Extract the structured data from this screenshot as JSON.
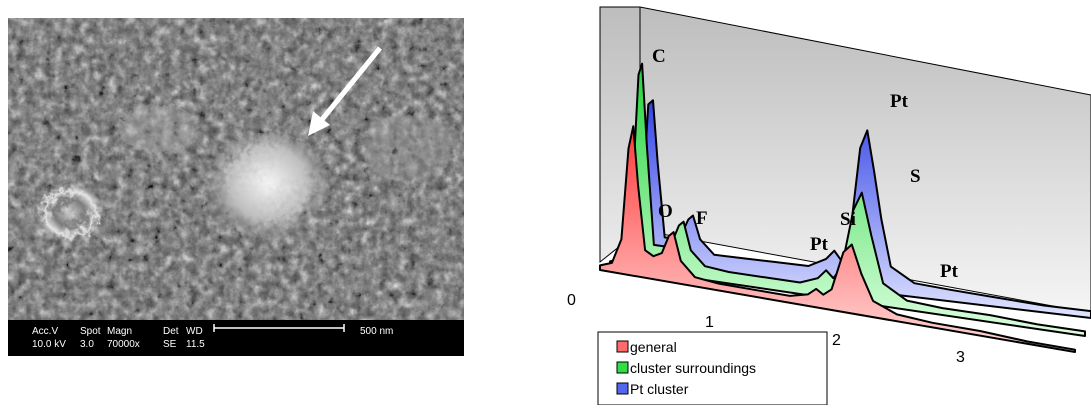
{
  "sem_image": {
    "info_bar": {
      "headers": [
        "Acc.V",
        "Spot",
        "Magn",
        "Det",
        "WD"
      ],
      "values": [
        "10.0 kV",
        "3.0",
        "70000x",
        "SE",
        "11.5"
      ],
      "scale_bar_label": "500 nm"
    }
  },
  "chart_data": {
    "type": "area",
    "title": "",
    "xlabel": "",
    "ylabel": "",
    "x_ticks": [
      "0",
      "1",
      "2",
      "3"
    ],
    "xlim": [
      0,
      4
    ],
    "ylim": [
      0,
      100
    ],
    "grid": false,
    "legend_placement": "bottom-left",
    "peak_annotations": [
      "C",
      "O",
      "F",
      "Pt",
      "Si",
      "Pt",
      "S",
      "Pt"
    ],
    "series": [
      {
        "name": "general",
        "color": "#ff6b6b",
        "points": [
          [
            0.0,
            2
          ],
          [
            0.1,
            4
          ],
          [
            0.18,
            15
          ],
          [
            0.24,
            55
          ],
          [
            0.28,
            65
          ],
          [
            0.32,
            40
          ],
          [
            0.38,
            12
          ],
          [
            0.45,
            10
          ],
          [
            0.52,
            12
          ],
          [
            0.58,
            20
          ],
          [
            0.62,
            22
          ],
          [
            0.68,
            10
          ],
          [
            0.8,
            4
          ],
          [
            1.0,
            3
          ],
          [
            1.3,
            3
          ],
          [
            1.6,
            3
          ],
          [
            1.75,
            5
          ],
          [
            1.82,
            8
          ],
          [
            1.88,
            6
          ],
          [
            1.95,
            9
          ],
          [
            2.05,
            26
          ],
          [
            2.12,
            30
          ],
          [
            2.2,
            18
          ],
          [
            2.3,
            7
          ],
          [
            2.5,
            3
          ],
          [
            2.8,
            2
          ],
          [
            3.2,
            2
          ],
          [
            3.6,
            1
          ],
          [
            4.0,
            1
          ]
        ]
      },
      {
        "name": "cluster surroundings",
        "color": "#33dd44",
        "points": [
          [
            0.0,
            2
          ],
          [
            0.1,
            4
          ],
          [
            0.18,
            25
          ],
          [
            0.24,
            85
          ],
          [
            0.27,
            90
          ],
          [
            0.31,
            55
          ],
          [
            0.37,
            12
          ],
          [
            0.45,
            12
          ],
          [
            0.52,
            14
          ],
          [
            0.58,
            22
          ],
          [
            0.62,
            24
          ],
          [
            0.68,
            12
          ],
          [
            0.8,
            6
          ],
          [
            1.0,
            5
          ],
          [
            1.3,
            5
          ],
          [
            1.6,
            5
          ],
          [
            1.75,
            8
          ],
          [
            1.82,
            12
          ],
          [
            1.88,
            9
          ],
          [
            1.95,
            14
          ],
          [
            2.05,
            40
          ],
          [
            2.12,
            48
          ],
          [
            2.2,
            30
          ],
          [
            2.3,
            10
          ],
          [
            2.5,
            4
          ],
          [
            2.8,
            3
          ],
          [
            3.2,
            3
          ],
          [
            3.6,
            2
          ],
          [
            4.0,
            2
          ]
        ]
      },
      {
        "name": "Pt cluster",
        "color": "#5566ee",
        "points": [
          [
            0.0,
            2
          ],
          [
            0.1,
            4
          ],
          [
            0.18,
            20
          ],
          [
            0.24,
            70
          ],
          [
            0.28,
            72
          ],
          [
            0.32,
            45
          ],
          [
            0.38,
            13
          ],
          [
            0.45,
            13
          ],
          [
            0.52,
            15
          ],
          [
            0.58,
            22
          ],
          [
            0.62,
            24
          ],
          [
            0.68,
            14
          ],
          [
            0.8,
            8
          ],
          [
            1.0,
            8
          ],
          [
            1.3,
            8
          ],
          [
            1.6,
            8
          ],
          [
            1.75,
            12
          ],
          [
            1.82,
            16
          ],
          [
            1.88,
            12
          ],
          [
            1.95,
            22
          ],
          [
            2.04,
            62
          ],
          [
            2.1,
            70
          ],
          [
            2.16,
            52
          ],
          [
            2.22,
            32
          ],
          [
            2.3,
            12
          ],
          [
            2.5,
            6
          ],
          [
            2.8,
            5
          ],
          [
            3.2,
            4
          ],
          [
            3.6,
            3
          ],
          [
            4.0,
            3
          ]
        ]
      }
    ]
  }
}
